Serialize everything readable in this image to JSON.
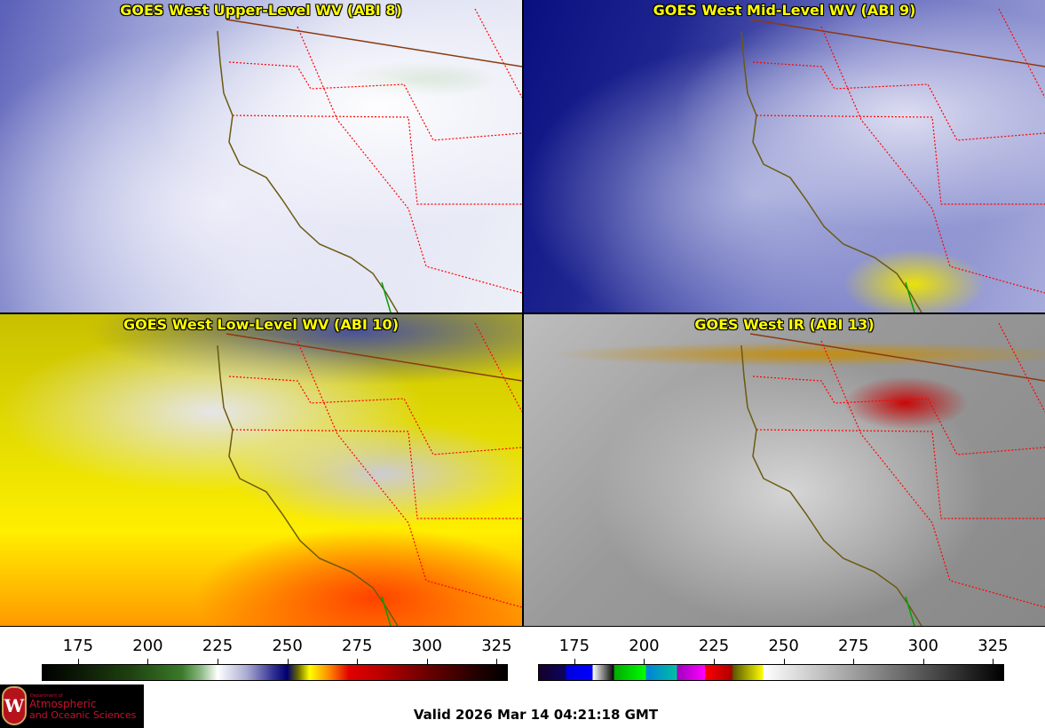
{
  "panels": [
    {
      "title": "GOES West Upper-Level WV (ABI 8)"
    },
    {
      "title": "GOES West Mid-Level WV (ABI 9)"
    },
    {
      "title": "GOES West Low-Level WV (ABI 10)"
    },
    {
      "title": "GOES West IR (ABI 13)"
    }
  ],
  "colorbars": [
    {
      "name": "water-vapor",
      "unit_range": [
        162,
        329
      ],
      "ticks": [
        "175",
        "200",
        "225",
        "250",
        "275",
        "300",
        "325"
      ]
    },
    {
      "name": "infrared",
      "unit_range": [
        162,
        329
      ],
      "ticks": [
        "175",
        "200",
        "225",
        "250",
        "275",
        "300",
        "325"
      ]
    }
  ],
  "logo": {
    "line1": "Department of",
    "line2": "Atmospheric",
    "line3": "and Oceanic Sciences",
    "crest_letter": "W"
  },
  "valid_time": "Valid 2026 Mar 14 04:21:18 GMT",
  "colors": {
    "title_text": "#ffff00",
    "state_border": "#ff0000",
    "coastline": "#6b5a10"
  }
}
